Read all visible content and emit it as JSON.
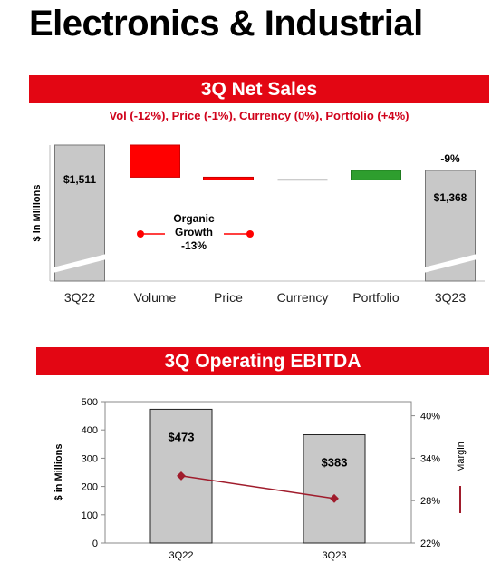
{
  "page_title": "Electronics & Industrial",
  "colors": {
    "brand_red": "#e30613",
    "bar_gray": "#c8c8c8",
    "negative": "#ff0000",
    "positive": "#2e9e2e",
    "margin_line": "#a01c2c"
  },
  "chart_data": [
    {
      "type": "waterfall",
      "title": "3Q Net Sales",
      "subtitle": "Vol (-12%), Price (-1%), Currency (0%), Portfolio (+4%)",
      "ylabel": "$ in Millions",
      "categories": [
        "3Q22",
        "Volume",
        "Price",
        "Currency",
        "Portfolio",
        "3Q23"
      ],
      "start_value": 1511,
      "deltas": [
        -181,
        -15,
        0,
        53
      ],
      "end_value": 1368,
      "value_labels": {
        "start": "$1,511",
        "end": "$1,368"
      },
      "change_label": "-9%",
      "annotation": {
        "lines": [
          "Organic",
          "Growth",
          "-13%"
        ]
      }
    },
    {
      "type": "bar+line",
      "title": "3Q Operating EBITDA",
      "ylabel": "$ in Millions",
      "y2label": "Margin",
      "categories": [
        "3Q22",
        "3Q23"
      ],
      "ylim": [
        0,
        500
      ],
      "yticks": [
        "0",
        "100",
        "200",
        "300",
        "400",
        "500"
      ],
      "y2lim": [
        22,
        42
      ],
      "y2ticks": [
        "22%",
        "28%",
        "34%",
        "40%"
      ],
      "series": [
        {
          "type": "bar",
          "values": [
            473,
            383
          ],
          "labels": [
            "$473",
            "$383"
          ]
        },
        {
          "type": "line",
          "axis": "right",
          "values": [
            31.5,
            28.3
          ]
        }
      ]
    }
  ]
}
